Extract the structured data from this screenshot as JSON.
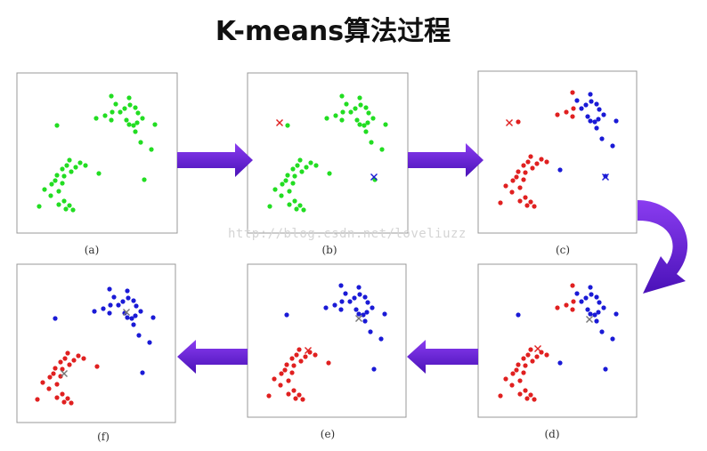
{
  "title": "K-means算法过程",
  "watermark": "http://blog.csdn.net/loveliuzz",
  "colors": {
    "unassigned": "#22dd22",
    "cluster_red": "#e02020",
    "cluster_blue": "#1a1ad6",
    "arrow": "#6a1ee0",
    "centroid_gray": "#777777"
  },
  "panels": [
    {
      "id": "a",
      "label": "(a)"
    },
    {
      "id": "b",
      "label": "(b)"
    },
    {
      "id": "c",
      "label": "(c)"
    },
    {
      "id": "d",
      "label": "(d)"
    },
    {
      "id": "e",
      "label": "(e)"
    },
    {
      "id": "f",
      "label": "(f)"
    }
  ]
}
